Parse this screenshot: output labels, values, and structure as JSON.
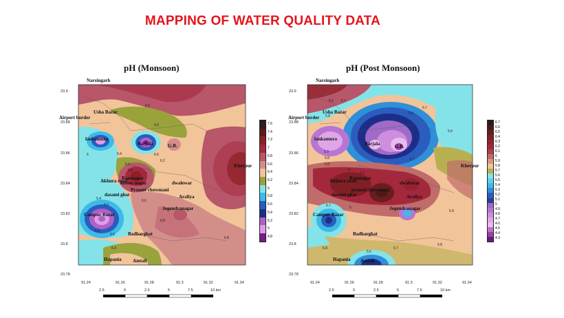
{
  "slide": {
    "title": "MAPPING OF WATER QUALITY DATA"
  },
  "maps": [
    {
      "id": "monsoon",
      "title": "pH (Monsoon)",
      "legend": [
        "7.6",
        "7.4",
        "7.2",
        "7",
        "6.8",
        "6.6",
        "6.4",
        "6.2",
        "6",
        "5.8",
        "5.6",
        "5.4",
        "5.2",
        "5",
        "4.8"
      ],
      "legend_colors": [
        "#2e1d1f",
        "#5c1a1a",
        "#8a2024",
        "#a4283c",
        "#b8566a",
        "#d48e8a",
        "#f2c49a",
        "#9aa23c",
        "#84e3e8",
        "#3dbbe8",
        "#2a5dbe",
        "#1d2e8a",
        "#b061c8",
        "#de9ce8",
        "#7a1a8a"
      ],
      "places": [
        "Narsingarh",
        "Usha Bazar",
        "Airport border",
        "lankamura",
        "Barjala",
        "G.B.",
        "Kherpur",
        "Akhura road",
        "Ramnagar",
        "Jogendranagar",
        "Abhoy nagar",
        "Prasent chowmani",
        "dasami ghat",
        "dwalewar",
        "Araliya",
        "Campur Bazar",
        "Badharghat",
        "Hapania",
        "Amtali"
      ],
      "contour_labels": [
        "6.6",
        "6.6",
        "6.4",
        "6.2",
        "6.6",
        "6.8",
        "7",
        "6.4",
        "6.6",
        "5.4",
        "5.6",
        "6.8",
        "6.6",
        "6.8",
        "6.4",
        "6.2",
        "6"
      ],
      "x_ticks": [
        "91.24",
        "91.26",
        "91.28",
        "91.3",
        "91.32",
        "91.34"
      ],
      "y_ticks": [
        "23.9",
        "23.88",
        "23.86",
        "23.84",
        "23.82",
        "23.8",
        "23.78"
      ],
      "scale_labels": [
        "2.5",
        "0",
        "2.5",
        "5",
        "7.5",
        "10 km"
      ]
    },
    {
      "id": "post-monsoon",
      "title": "pH (Post Monsoon)",
      "legend": [
        "6.7",
        "6.6",
        "6.5",
        "6.4",
        "6.3",
        "6.2",
        "6.1",
        "6",
        "5.9",
        "5.8",
        "5.7",
        "5.6",
        "5.5",
        "5.4",
        "5.3",
        "5.2",
        "5.1",
        "5",
        "4.9",
        "4.8",
        "4.7",
        "4.6",
        "4.5",
        "4.4",
        "4.3"
      ],
      "legend_colors": [
        "#2a1a1a",
        "#4a1a1a",
        "#6a1c1e",
        "#821f24",
        "#962230",
        "#a4283c",
        "#b0404e",
        "#c06c6a",
        "#d89880",
        "#f2c49a",
        "#b8b050",
        "#84e3e8",
        "#5fd0ee",
        "#3dbbe8",
        "#2f8fd8",
        "#2a5dbe",
        "#2a3f9a",
        "#a06ac8",
        "#b876d2",
        "#ce8ede",
        "#dea6e8",
        "#e8bcee",
        "#c070c8",
        "#9a40a8",
        "#6a1a80"
      ],
      "places": [
        "Narsingarh",
        "Usha Bazar",
        "Airport border",
        "lankamura",
        "Barjala",
        "G.B.",
        "Kherpur",
        "Akhura road",
        "Ramnagar",
        "prasent chowmani",
        "dasami ghat",
        "dwalewar",
        "Araliya",
        "Jogendranagar",
        "Campur Bazar",
        "Badharghat",
        "Hapania",
        "Amtali"
      ],
      "contour_labels": [
        "5.6",
        "5.7",
        "5.8",
        "5.4",
        "5.7",
        "5.6",
        "5.9",
        "5.8",
        "5.8",
        "5.7",
        "6",
        "6.1",
        "6",
        "5.7",
        "5.9",
        "5.8",
        "5.6",
        "5.7",
        "5.8"
      ],
      "x_ticks": [
        "91.24",
        "91.26",
        "91.28",
        "91.3",
        "91.32",
        "91.34"
      ],
      "y_ticks": [
        "23.9",
        "23.88",
        "23.86",
        "23.84",
        "23.82",
        "23.8",
        "23.78"
      ],
      "scale_labels": [
        "2.5",
        "0",
        "2.5",
        "5",
        "7.5",
        "10 km"
      ]
    }
  ]
}
